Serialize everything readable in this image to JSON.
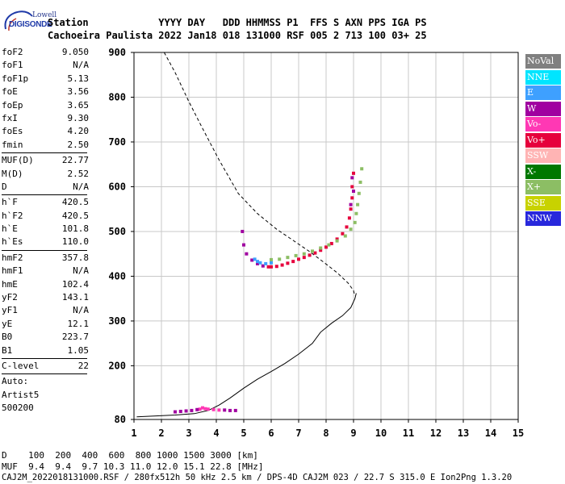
{
  "logo": {
    "line1": "Lowell",
    "line2": "DIGISONDE"
  },
  "header": {
    "row1": "Station            YYYY DAY   DDD HHMMSS P1  FFS S AXN PPS IGA PS",
    "row2": "Cachoeira Paulista 2022 Jan18 018 131000 RSF 005 2 713 100 03+ 25"
  },
  "params": {
    "group1": [
      {
        "k": "foF2",
        "v": "9.050"
      },
      {
        "k": "foF1",
        "v": "N/A"
      },
      {
        "k": "foF1p",
        "v": "5.13"
      },
      {
        "k": "foE",
        "v": "3.56"
      },
      {
        "k": "foEp",
        "v": "3.65"
      },
      {
        "k": "fxI",
        "v": "9.30"
      },
      {
        "k": "foEs",
        "v": "4.20"
      },
      {
        "k": "fmin",
        "v": "2.50"
      }
    ],
    "group2": [
      {
        "k": "MUF(D)",
        "v": "22.77"
      },
      {
        "k": "M(D)",
        "v": "2.52"
      },
      {
        "k": "D",
        "v": "N/A"
      }
    ],
    "group3": [
      {
        "k": "h`F",
        "v": "420.5"
      },
      {
        "k": "h`F2",
        "v": "420.5"
      },
      {
        "k": "h`E",
        "v": "101.8"
      },
      {
        "k": "h`Es",
        "v": "110.0"
      }
    ],
    "group4": [
      {
        "k": "hmF2",
        "v": "357.8"
      },
      {
        "k": "hmF1",
        "v": "N/A"
      },
      {
        "k": "hmE",
        "v": "102.4"
      },
      {
        "k": "yF2",
        "v": "143.1"
      },
      {
        "k": "yF1",
        "v": "N/A"
      },
      {
        "k": "yE",
        "v": "12.1"
      },
      {
        "k": "B0",
        "v": "223.7"
      },
      {
        "k": "B1",
        "v": "1.05"
      }
    ],
    "group5": [
      {
        "k": "C-level",
        "v": "22"
      }
    ],
    "auto": [
      "Auto:",
      "Artist5",
      "500200"
    ]
  },
  "legend": [
    {
      "label": "NoVal",
      "color": "#808080"
    },
    {
      "label": "NNE",
      "color": "#00e5ff"
    },
    {
      "label": "E",
      "color": "#3ea0ff"
    },
    {
      "label": "W",
      "color": "#a000a0"
    },
    {
      "label": "Vo-",
      "color": "#ff38b4"
    },
    {
      "label": "Vo+",
      "color": "#e6003c"
    },
    {
      "label": "SSW",
      "color": "#ffb4b4"
    },
    {
      "label": "X-",
      "color": "#007800"
    },
    {
      "label": "X+",
      "color": "#8cbe64"
    },
    {
      "label": "SSE",
      "color": "#c8d200"
    },
    {
      "label": "NNW",
      "color": "#2828dc"
    }
  ],
  "bottom": {
    "d_row": "D    100  200  400  600  800 1000 1500 3000 [km]",
    "muf_row": "MUF  9.4  9.4  9.7 10.3 11.0 12.0 15.1 22.8 [MHz]",
    "footer": "CAJ2M_2022018131000.RSF / 280fx512h 50 kHz 2.5 km / DPS-4D CAJ2M 023 / 22.7 S 315.0 E Ion2Png 1.3.20"
  },
  "chart_data": {
    "type": "scatter",
    "title": "",
    "xlabel": "",
    "ylabel": "",
    "xlim": [
      1,
      15
    ],
    "ylim": [
      80,
      900
    ],
    "xticks": [
      "1",
      "2",
      "3",
      "4",
      "5",
      "6",
      "7",
      "8",
      "9",
      "10",
      "11",
      "12",
      "13",
      "14",
      "15"
    ],
    "yticks": [
      "80",
      "200",
      "300",
      "400",
      "500",
      "600",
      "700",
      "800",
      "900"
    ],
    "grid": true,
    "series": [
      {
        "name": "profile",
        "style": "solid",
        "points": [
          [
            1.1,
            86
          ],
          [
            1.8,
            88
          ],
          [
            2.5,
            90
          ],
          [
            3.2,
            93
          ],
          [
            3.7,
            100
          ],
          [
            4.1,
            112
          ],
          [
            4.5,
            128
          ],
          [
            5.0,
            150
          ],
          [
            5.5,
            170
          ],
          [
            6.0,
            187
          ],
          [
            6.5,
            205
          ],
          [
            7.0,
            226
          ],
          [
            7.5,
            250
          ],
          [
            7.8,
            275
          ],
          [
            8.2,
            295
          ],
          [
            8.6,
            312
          ],
          [
            8.9,
            330
          ],
          [
            9.05,
            350
          ],
          [
            9.1,
            362
          ]
        ]
      },
      {
        "name": "profile-extrapolated",
        "style": "dashed",
        "points": [
          [
            2.1,
            900
          ],
          [
            2.5,
            855
          ],
          [
            3.0,
            790
          ],
          [
            3.5,
            730
          ],
          [
            4.1,
            660
          ],
          [
            4.8,
            585
          ],
          [
            5.5,
            540
          ],
          [
            6.2,
            505
          ],
          [
            6.8,
            480
          ],
          [
            7.4,
            455
          ],
          [
            7.9,
            432
          ],
          [
            8.4,
            408
          ],
          [
            8.8,
            385
          ],
          [
            9.0,
            368
          ],
          [
            9.05,
            356
          ]
        ]
      },
      {
        "name": "Vo+",
        "color": "#e6003c",
        "points": [
          [
            5.9,
            421
          ],
          [
            6.0,
            421
          ],
          [
            6.2,
            422
          ],
          [
            6.4,
            425
          ],
          [
            6.6,
            429
          ],
          [
            6.8,
            433
          ],
          [
            7.0,
            438
          ],
          [
            7.2,
            442
          ],
          [
            7.4,
            447
          ],
          [
            7.6,
            452
          ],
          [
            7.8,
            458
          ],
          [
            8.0,
            465
          ],
          [
            8.2,
            473
          ],
          [
            8.4,
            483
          ],
          [
            8.6,
            495
          ],
          [
            8.75,
            510
          ],
          [
            8.85,
            530
          ],
          [
            8.9,
            550
          ],
          [
            8.95,
            575
          ],
          [
            8.95,
            600
          ],
          [
            9.0,
            630
          ]
        ]
      },
      {
        "name": "Vo-",
        "color": "#ff38b4",
        "points": [
          [
            3.4,
            103
          ],
          [
            3.5,
            106
          ],
          [
            3.6,
            104
          ],
          [
            3.7,
            103
          ],
          [
            3.9,
            102
          ],
          [
            4.1,
            101
          ]
        ]
      },
      {
        "name": "W",
        "color": "#a000a0",
        "points": [
          [
            4.95,
            500
          ],
          [
            5.0,
            470
          ],
          [
            5.1,
            450
          ],
          [
            5.3,
            436
          ],
          [
            5.5,
            428
          ],
          [
            5.7,
            423
          ],
          [
            2.5,
            97
          ],
          [
            2.7,
            98
          ],
          [
            2.9,
            99
          ],
          [
            3.1,
            100
          ],
          [
            3.3,
            102
          ],
          [
            4.3,
            101
          ],
          [
            4.5,
            100
          ],
          [
            4.7,
            100
          ],
          [
            8.9,
            560
          ],
          [
            9.0,
            590
          ],
          [
            8.95,
            620
          ]
        ]
      },
      {
        "name": "E",
        "color": "#3ea0ff",
        "points": [
          [
            5.4,
            438
          ],
          [
            5.5,
            433
          ],
          [
            5.6,
            430
          ],
          [
            5.8,
            428
          ],
          [
            6.0,
            430
          ]
        ]
      },
      {
        "name": "X+",
        "color": "#8cbe64",
        "points": [
          [
            6.0,
            437
          ],
          [
            6.3,
            438
          ],
          [
            6.6,
            442
          ],
          [
            6.9,
            446
          ],
          [
            7.2,
            450
          ],
          [
            7.5,
            456
          ],
          [
            7.8,
            463
          ],
          [
            8.1,
            470
          ],
          [
            8.4,
            479
          ],
          [
            8.7,
            490
          ],
          [
            8.9,
            505
          ],
          [
            9.05,
            520
          ],
          [
            9.1,
            540
          ],
          [
            9.15,
            560
          ],
          [
            9.2,
            585
          ],
          [
            9.25,
            610
          ],
          [
            9.3,
            640
          ]
        ]
      }
    ]
  }
}
